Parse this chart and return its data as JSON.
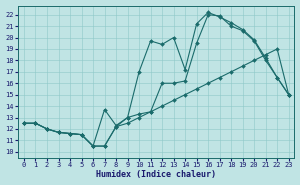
{
  "xlabel": "Humidex (Indice chaleur)",
  "background_color": "#c0e4e4",
  "line_color": "#1a6b6b",
  "xlim": [
    -0.5,
    23.5
  ],
  "ylim": [
    9.5,
    22.8
  ],
  "xticks": [
    0,
    1,
    2,
    3,
    4,
    5,
    6,
    7,
    8,
    9,
    10,
    11,
    12,
    13,
    14,
    15,
    16,
    17,
    18,
    19,
    20,
    21,
    22,
    23
  ],
  "yticks": [
    10,
    11,
    12,
    13,
    14,
    15,
    16,
    17,
    18,
    19,
    20,
    21,
    22
  ],
  "line1_x": [
    0,
    1,
    2,
    3,
    4,
    5,
    6,
    7,
    8,
    9,
    10,
    11,
    12,
    13,
    14,
    15,
    16,
    17,
    18,
    19,
    20,
    21,
    22,
    23
  ],
  "line1_y": [
    12.5,
    12.5,
    12.0,
    11.7,
    11.6,
    11.5,
    10.5,
    10.5,
    12.2,
    12.5,
    13.0,
    13.5,
    14.0,
    14.5,
    15.0,
    15.5,
    16.0,
    16.5,
    17.0,
    17.5,
    18.0,
    18.5,
    19.0,
    15.0
  ],
  "line2_x": [
    0,
    1,
    2,
    3,
    4,
    5,
    6,
    7,
    8,
    9,
    10,
    11,
    12,
    13,
    14,
    15,
    16,
    17,
    18,
    19,
    20,
    21,
    22,
    23
  ],
  "line2_y": [
    12.5,
    12.5,
    12.0,
    11.7,
    11.6,
    11.5,
    10.5,
    10.5,
    12.2,
    13.0,
    17.0,
    19.7,
    19.4,
    20.0,
    17.2,
    21.2,
    22.2,
    21.8,
    21.3,
    20.7,
    19.8,
    18.2,
    16.5,
    15.0
  ],
  "line3_x": [
    0,
    1,
    2,
    3,
    4,
    5,
    6,
    7,
    8,
    9,
    10,
    11,
    12,
    13,
    14,
    15,
    16,
    17,
    18,
    19,
    20,
    21,
    22,
    23
  ],
  "line3_y": [
    12.5,
    12.5,
    12.0,
    11.7,
    11.6,
    11.5,
    10.5,
    13.7,
    12.3,
    13.0,
    13.3,
    13.5,
    16.0,
    16.0,
    16.2,
    19.5,
    22.0,
    21.9,
    21.0,
    20.6,
    19.7,
    18.0,
    16.5,
    15.0
  ],
  "figwidth": 3.0,
  "figheight": 1.85
}
